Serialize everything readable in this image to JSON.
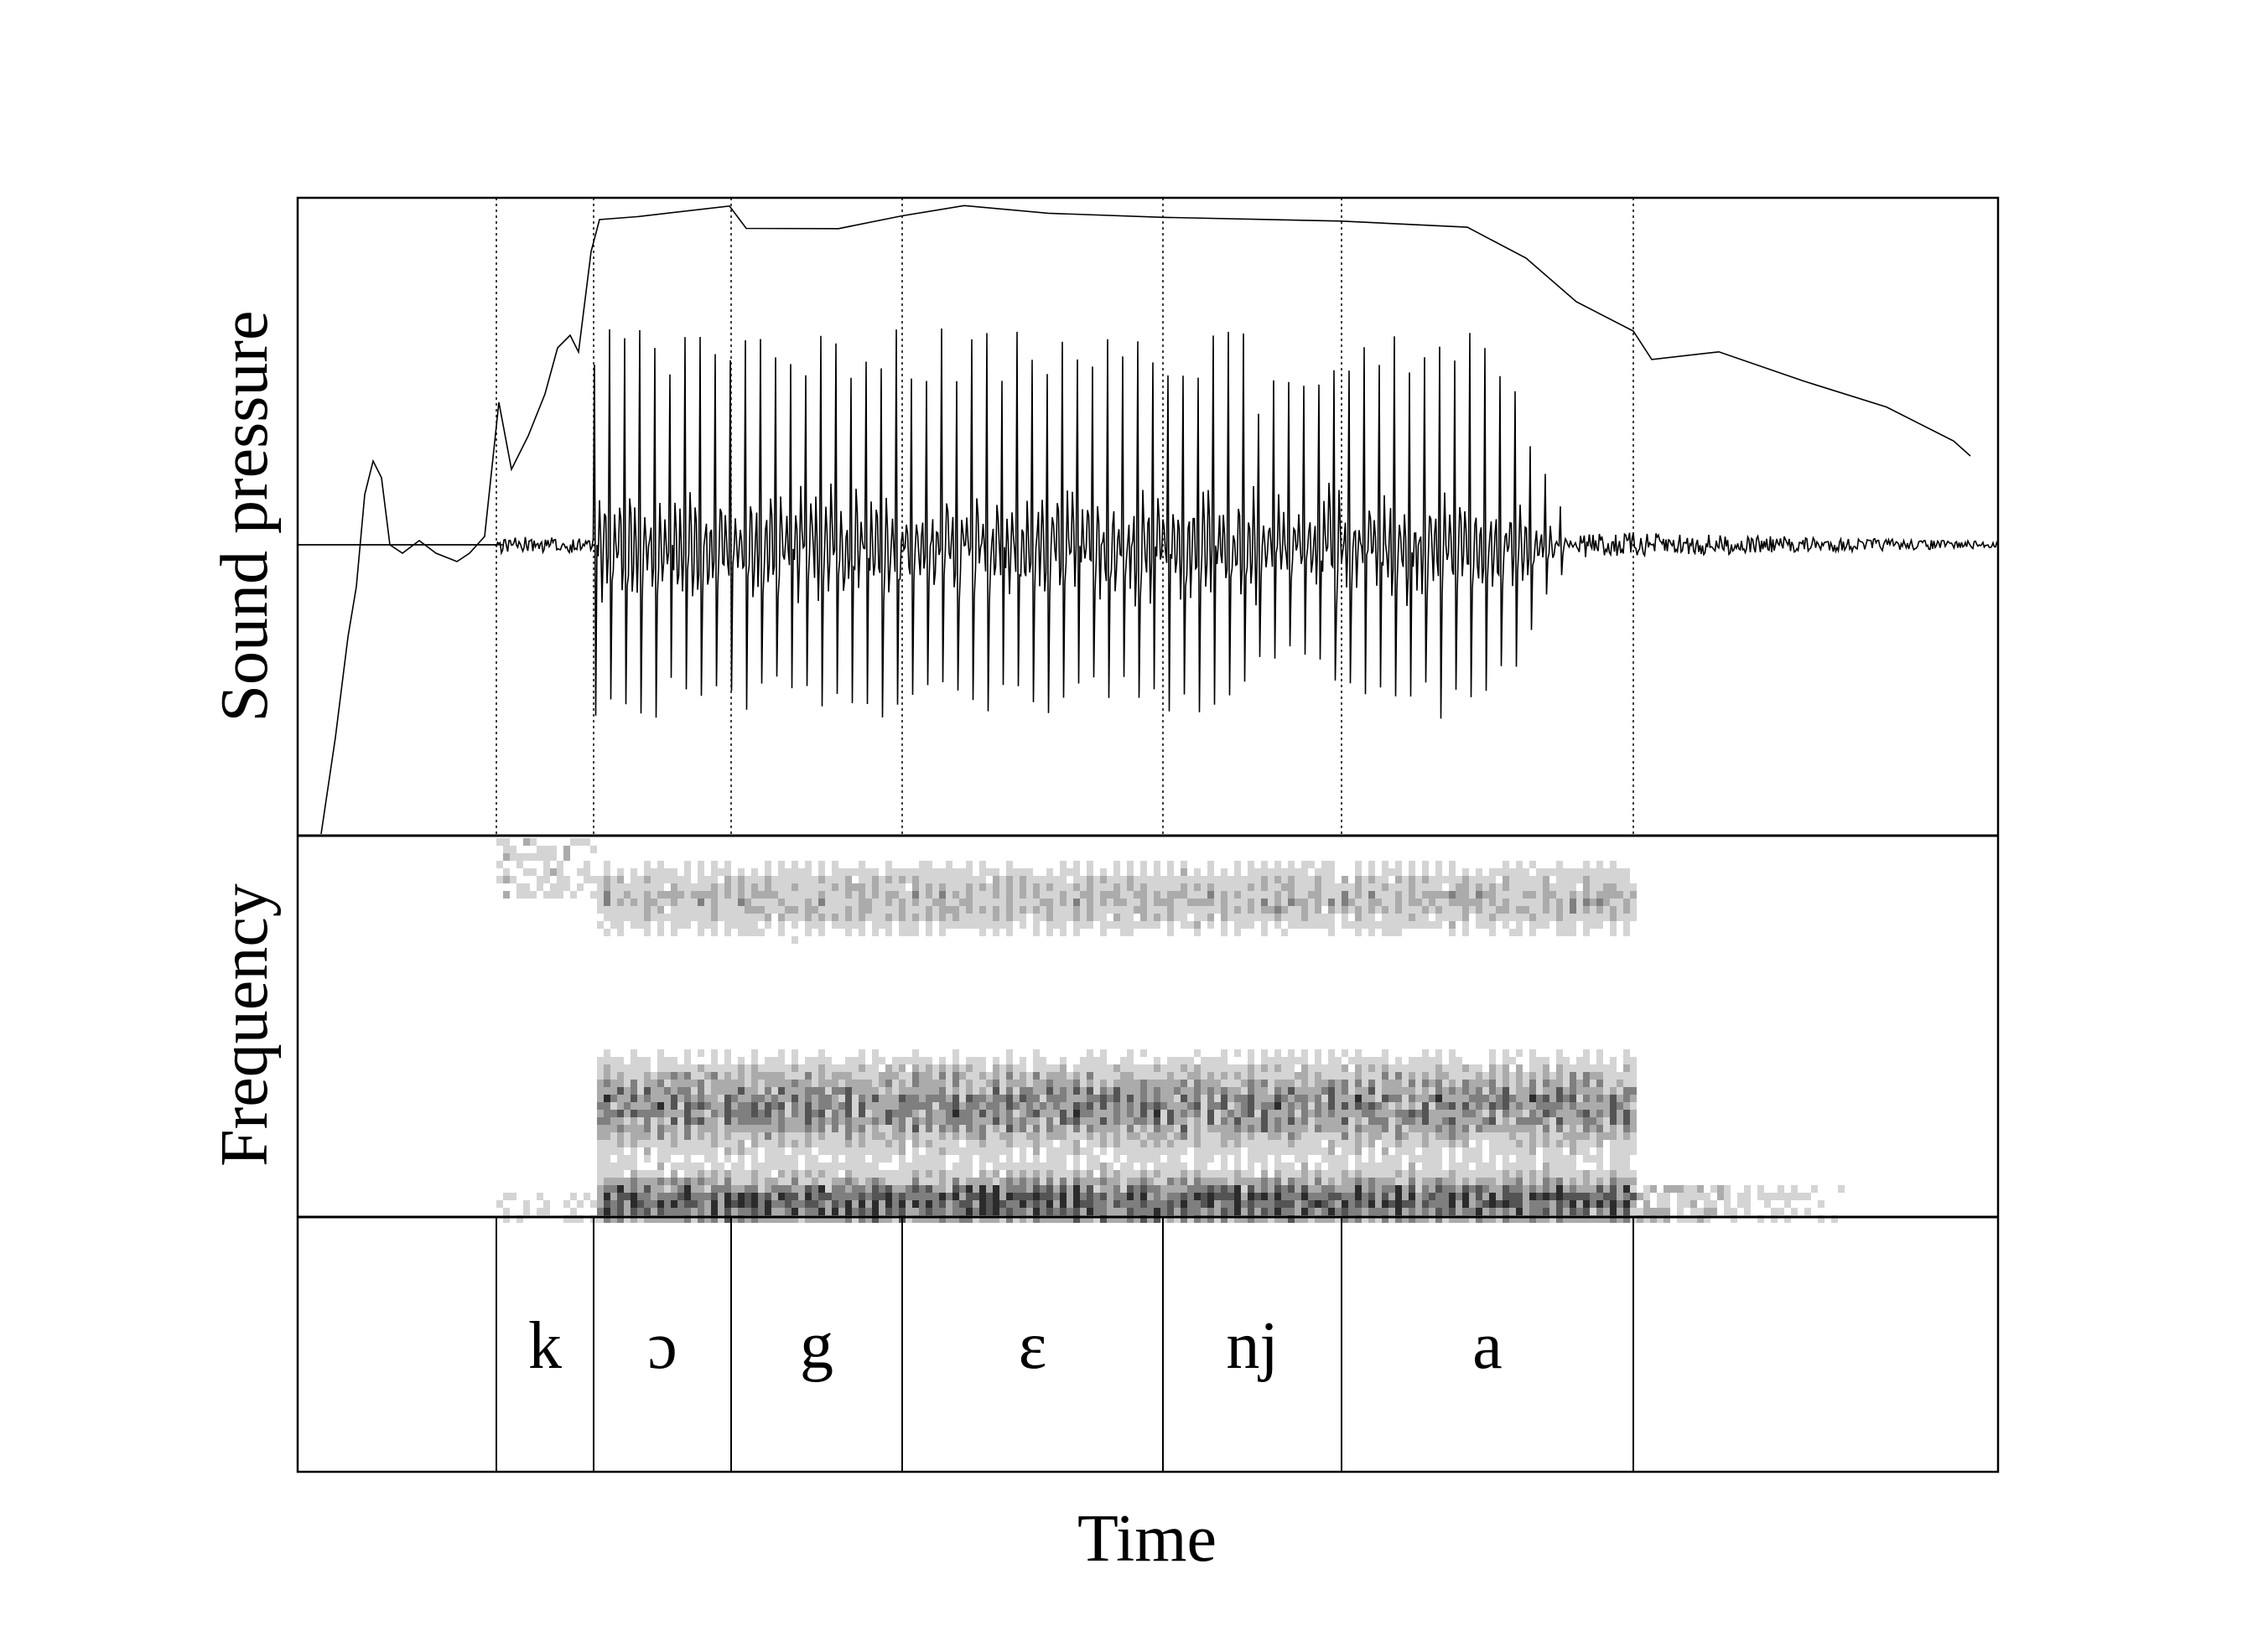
{
  "panels": {
    "waveform_label": "Sound pressure",
    "spectrogram_label": "Frequency",
    "time_label": "Time"
  },
  "segments": [
    "k",
    "ɔ",
    "g",
    "ɛ",
    "nj",
    "a"
  ]
}
